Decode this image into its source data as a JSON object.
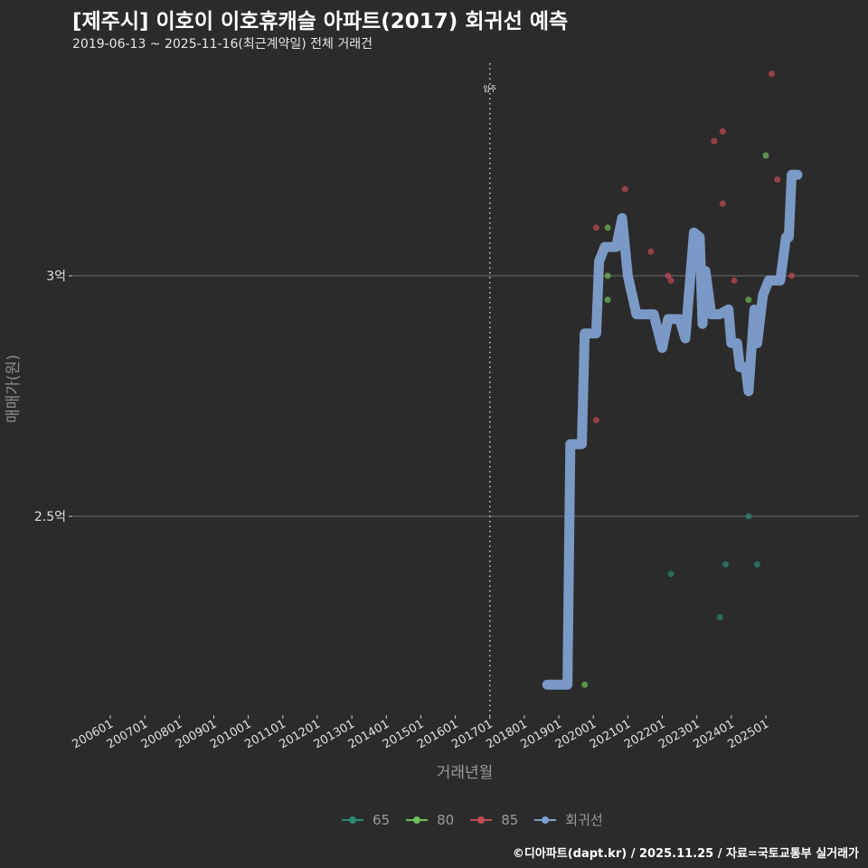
{
  "header": {
    "title": "[제주시] 이호이 이호휴캐슬 아파트(2017) 회귀선 예측",
    "subtitle": "2019-06-13 ~ 2025-11-16(최근계약일) 전체 거래건"
  },
  "colors": {
    "background": "#2b2b2b",
    "grid": "#6e6e6e",
    "s65": "#2a8a74",
    "s80": "#6fbf5a",
    "s85": "#c44a55",
    "regression": "#7f9fcf"
  },
  "legend": {
    "items": [
      {
        "label": "65",
        "color": "#2a8a74"
      },
      {
        "label": "80",
        "color": "#6fbf5a"
      },
      {
        "label": "85",
        "color": "#c44a55"
      },
      {
        "label": "회귀선",
        "color": "#7f9fcf"
      }
    ]
  },
  "footer": {
    "credit": "©디아파트(dapt.kr) / 2025.11.25 / 자료=국토교통부 실거래가"
  },
  "chart_data": {
    "type": "scatter",
    "title": "[제주시] 이호이 이호휴캐슬 아파트(2017) 회귀선 예측",
    "subtitle": "2019-06-13 ~ 2025-11-16(최근계약일) 전체 거래건",
    "xlabel": "거래년월",
    "ylabel": "매매가(원)",
    "x_ticks": [
      "200601",
      "200701",
      "200801",
      "200901",
      "201001",
      "201101",
      "201201",
      "201301",
      "201401",
      "201501",
      "201601",
      "201701",
      "201801",
      "201901",
      "202001",
      "202101",
      "202201",
      "202301",
      "202401",
      "202501"
    ],
    "y_ticks": [
      "2.5억",
      "3억"
    ],
    "y_tick_values": [
      250000000,
      300000000
    ],
    "annotation": {
      "label": "입주",
      "x": "201701",
      "style": "dotted vertical line"
    },
    "grid": "horizontal only",
    "legend_position": "bottom",
    "series": [
      {
        "name": "65",
        "type": "scatter",
        "points": [
          {
            "x": "2022-04",
            "y": 238000000
          },
          {
            "x": "2023-09",
            "y": 229000000
          },
          {
            "x": "2023-11",
            "y": 240000000
          },
          {
            "x": "2024-07",
            "y": 250000000
          },
          {
            "x": "2024-10",
            "y": 240000000
          }
        ]
      },
      {
        "name": "80",
        "type": "scatter",
        "points": [
          {
            "x": "2019-10",
            "y": 215000000
          },
          {
            "x": "2020-06",
            "y": 310000000
          },
          {
            "x": "2020-06",
            "y": 300000000
          },
          {
            "x": "2020-06",
            "y": 295000000
          },
          {
            "x": "2024-07",
            "y": 295000000
          },
          {
            "x": "2025-01",
            "y": 325000000
          }
        ]
      },
      {
        "name": "85",
        "type": "scatter",
        "points": [
          {
            "x": "2020-02",
            "y": 310000000
          },
          {
            "x": "2020-02",
            "y": 270000000
          },
          {
            "x": "2020-12",
            "y": 318000000
          },
          {
            "x": "2021-09",
            "y": 305000000
          },
          {
            "x": "2022-03",
            "y": 300000000
          },
          {
            "x": "2022-04",
            "y": 299000000
          },
          {
            "x": "2023-07",
            "y": 328000000
          },
          {
            "x": "2023-10",
            "y": 330000000
          },
          {
            "x": "2023-10",
            "y": 315000000
          },
          {
            "x": "2024-02",
            "y": 299000000
          },
          {
            "x": "2025-03",
            "y": 342000000
          },
          {
            "x": "2025-05",
            "y": 320000000
          },
          {
            "x": "2025-10",
            "y": 300000000
          }
        ]
      },
      {
        "name": "회귀선",
        "type": "line",
        "points": [
          {
            "x": "2018-09",
            "y": 215000000
          },
          {
            "x": "2019-04",
            "y": 215000000
          },
          {
            "x": "2019-05",
            "y": 265000000
          },
          {
            "x": "2019-09",
            "y": 265000000
          },
          {
            "x": "2019-10",
            "y": 288000000
          },
          {
            "x": "2020-02",
            "y": 288000000
          },
          {
            "x": "2020-03",
            "y": 303000000
          },
          {
            "x": "2020-05",
            "y": 306000000
          },
          {
            "x": "2020-09",
            "y": 306000000
          },
          {
            "x": "2020-11",
            "y": 312000000
          },
          {
            "x": "2021-01",
            "y": 300000000
          },
          {
            "x": "2021-04",
            "y": 292000000
          },
          {
            "x": "2021-10",
            "y": 292000000
          },
          {
            "x": "2022-01",
            "y": 285000000
          },
          {
            "x": "2022-03",
            "y": 291000000
          },
          {
            "x": "2022-07",
            "y": 291000000
          },
          {
            "x": "2022-09",
            "y": 287000000
          },
          {
            "x": "2022-12",
            "y": 309000000
          },
          {
            "x": "2023-02",
            "y": 308000000
          },
          {
            "x": "2023-03",
            "y": 290000000
          },
          {
            "x": "2023-04",
            "y": 301000000
          },
          {
            "x": "2023-06",
            "y": 292000000
          },
          {
            "x": "2023-09",
            "y": 292000000
          },
          {
            "x": "2023-12",
            "y": 293000000
          },
          {
            "x": "2024-01",
            "y": 286000000
          },
          {
            "x": "2024-03",
            "y": 286000000
          },
          {
            "x": "2024-04",
            "y": 281000000
          },
          {
            "x": "2024-06",
            "y": 281000000
          },
          {
            "x": "2024-07",
            "y": 276000000
          },
          {
            "x": "2024-09",
            "y": 293000000
          },
          {
            "x": "2024-10",
            "y": 286000000
          },
          {
            "x": "2024-12",
            "y": 296000000
          },
          {
            "x": "2025-02",
            "y": 299000000
          },
          {
            "x": "2025-06",
            "y": 299000000
          },
          {
            "x": "2025-08",
            "y": 308000000
          },
          {
            "x": "2025-09",
            "y": 308000000
          },
          {
            "x": "2025-10",
            "y": 321000000
          },
          {
            "x": "2025-12",
            "y": 321000000
          }
        ]
      }
    ]
  },
  "plot": {
    "x_axis_title": "거래년월",
    "y_axis_title": "매매가(원)",
    "y_labels": [
      {
        "label": "3억",
        "y": 305
      },
      {
        "label": "2.5억",
        "y": 571
      }
    ],
    "annotation_label": "입주"
  }
}
